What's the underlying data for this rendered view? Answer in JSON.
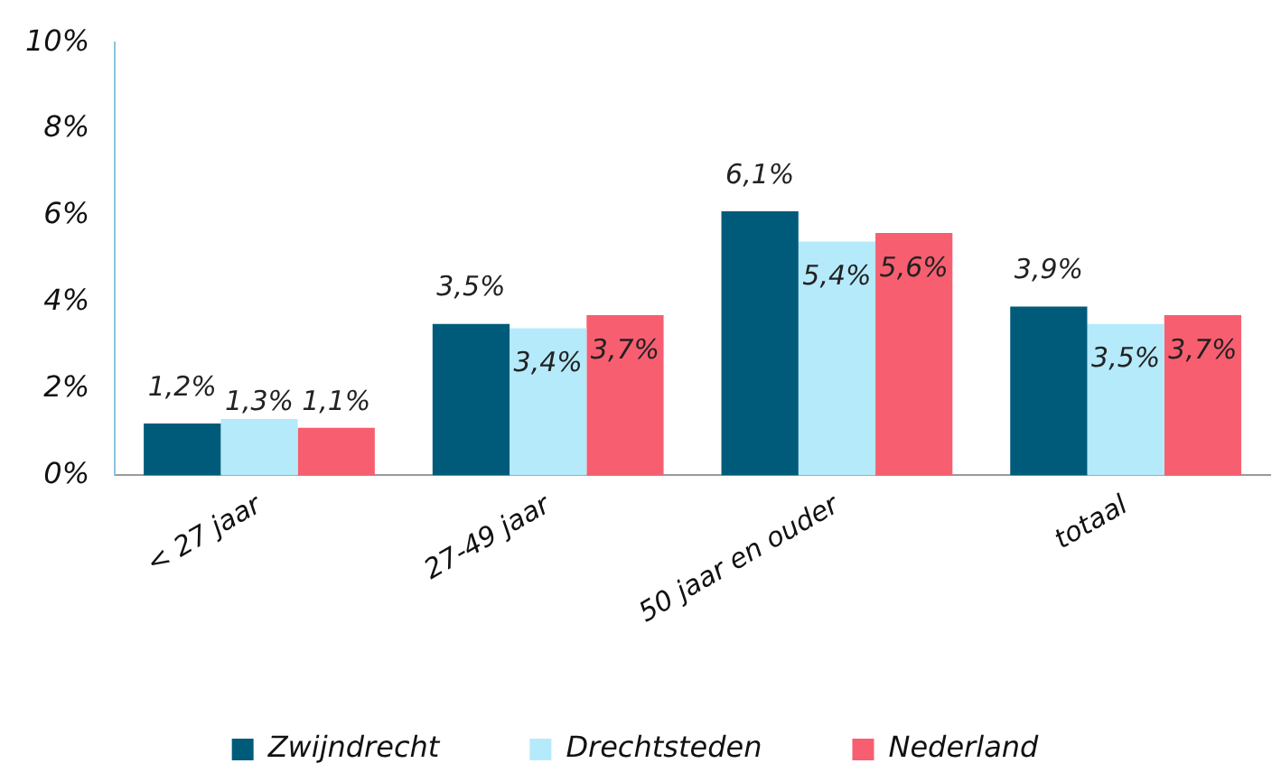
{
  "chart_data": {
    "type": "bar",
    "categories": [
      "< 27 jaar",
      "27-49 jaar",
      "50 jaar en ouder",
      "totaal"
    ],
    "series": [
      {
        "name": "Zwijndrecht",
        "color": "#005b7a",
        "values": [
          1.2,
          3.5,
          6.1,
          3.9
        ],
        "value_labels": [
          "1,2%",
          "3,5%",
          "6,1%",
          "3,9%"
        ]
      },
      {
        "name": "Drechtsteden",
        "color": "#b5eafb",
        "values": [
          1.3,
          3.4,
          5.4,
          3.5
        ],
        "value_labels": [
          "1,3%",
          "3,4%",
          "5,4%",
          "3,5%"
        ]
      },
      {
        "name": "Nederland",
        "color": "#f75f70",
        "values": [
          1.1,
          3.7,
          5.6,
          3.7
        ],
        "value_labels": [
          "1,1%",
          "3,7%",
          "5,6%",
          "3,7%"
        ]
      }
    ],
    "ylim": [
      0,
      10
    ],
    "yticks": [
      {
        "value": 0,
        "label": "0%"
      },
      {
        "value": 2,
        "label": "2%"
      },
      {
        "value": 4,
        "label": "4%"
      },
      {
        "value": 6,
        "label": "6%"
      },
      {
        "value": 8,
        "label": "8%"
      },
      {
        "value": 10,
        "label": "10%"
      }
    ],
    "grid": false,
    "legend": "bottom"
  }
}
